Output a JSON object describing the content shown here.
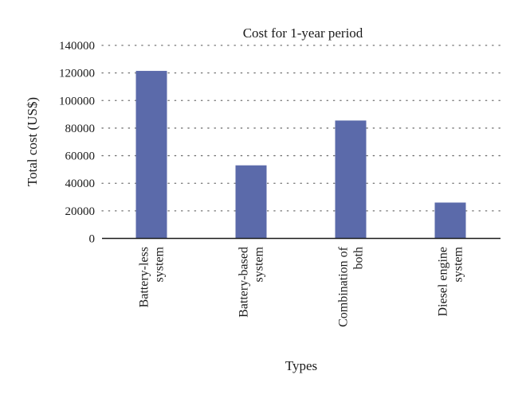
{
  "chart_data": {
    "type": "bar",
    "title": "Cost for 1-year period",
    "xlabel": "Types",
    "ylabel": "Total cost (US$)",
    "categories": [
      [
        "Battery-less",
        "system"
      ],
      [
        "Battery-based",
        "system"
      ],
      [
        "Combination of",
        "both"
      ],
      [
        "Diesel engine",
        "system"
      ]
    ],
    "values": [
      121500,
      53000,
      85500,
      26000
    ],
    "ylim": [
      0,
      140000
    ],
    "yticks": [
      0,
      20000,
      40000,
      60000,
      80000,
      100000,
      120000,
      140000
    ],
    "ytick_labels": [
      "0",
      "20000",
      "40000",
      "60000",
      "80000",
      "100000",
      "120000",
      "140000"
    ],
    "grid": true,
    "bar_color": "#5b6aaa"
  }
}
